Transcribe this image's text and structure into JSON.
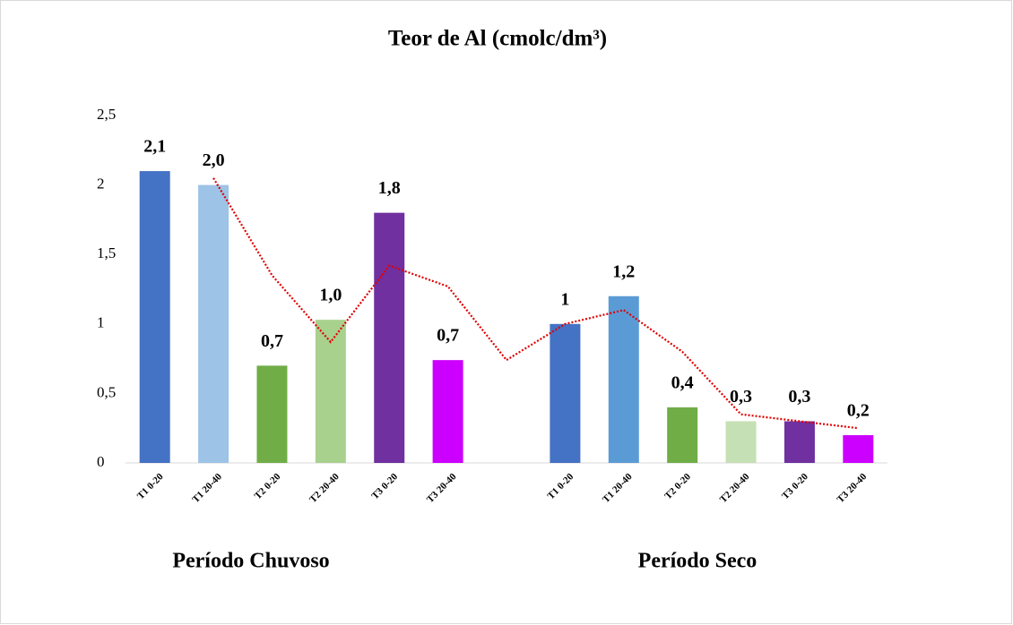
{
  "chart_data": {
    "type": "bar",
    "title": "Teor de Al (cmolc/dm³)",
    "categories": [
      "T1 0-20",
      "T1 20-40",
      "T2 0-20",
      "T2 20-40",
      "T3 0-20",
      "T3 20-40",
      null,
      "T1 0-20",
      "T1 20-40",
      "T2 0-20",
      "T2 20-40",
      "T3 0-20",
      "T3 20-40"
    ],
    "values": [
      2.1,
      2.0,
      0.7,
      1.03,
      1.8,
      0.74,
      null,
      1.0,
      1.2,
      0.4,
      0.3,
      0.3,
      0.2
    ],
    "value_labels": [
      "2,1",
      "2,0",
      "0,7",
      "1,0",
      "1,8",
      "0,7",
      null,
      "1",
      "1,2",
      "0,4",
      "0,3",
      "0,3",
      "0,2"
    ],
    "colors": [
      "#4472c4",
      "#9dc3e6",
      "#70ad47",
      "#a9d18e",
      "#7030a0",
      "#cc00ff",
      null,
      "#4472c4",
      "#5b9bd5",
      "#70ad47",
      "#c5e0b4",
      "#7030a0",
      "#cc00ff"
    ],
    "trendline": {
      "color": "#e00000",
      "values": [
        null,
        2.05,
        1.35,
        0.87,
        1.42,
        1.27,
        0.74,
        1.0,
        1.1,
        0.8,
        0.35,
        0.3,
        0.25
      ]
    },
    "annotations": [
      "Período Chuvoso",
      "Período Seco"
    ],
    "ylim": [
      0,
      2.5
    ],
    "yticks": [
      0,
      {
        "value": 0.5,
        "label": "0,5"
      },
      1,
      {
        "value": 1.5,
        "label": "1,5"
      },
      2,
      {
        "value": 2.5,
        "label": "2,5"
      }
    ],
    "grid": false
  }
}
